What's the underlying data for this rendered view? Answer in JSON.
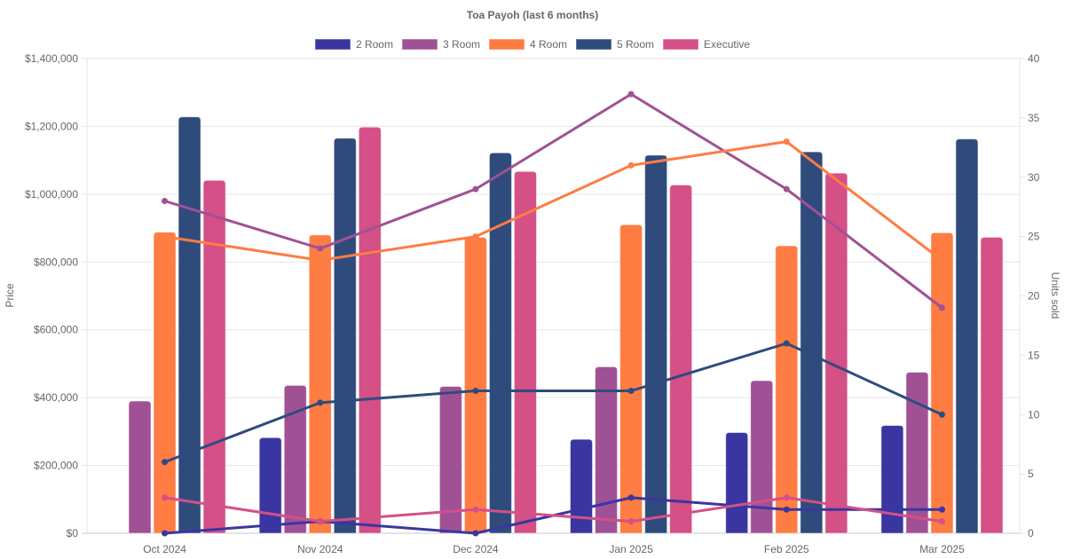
{
  "chart_data": {
    "type": "bar",
    "title": "Toa Payoh (last 6 months)",
    "categories": [
      "Oct 2024",
      "Nov 2024",
      "Dec 2024",
      "Jan 2025",
      "Feb 2025",
      "Mar 2025"
    ],
    "ylabel": "Price",
    "y2label": "Units sold",
    "ylim": [
      0,
      1400000
    ],
    "y2lim": [
      0,
      40
    ],
    "yticks": [
      "$0",
      "$200,000",
      "$400,000",
      "$600,000",
      "$800,000",
      "$1,000,000",
      "$1,200,000",
      "$1,400,000"
    ],
    "y2ticks": [
      "0",
      "5",
      "10",
      "15",
      "20",
      "25",
      "30",
      "35",
      "40"
    ],
    "legend_position": "top",
    "grid": true,
    "series": [
      {
        "name": "2 Room",
        "color": "#3a36a1",
        "price": [
          0,
          282000,
          0,
          277000,
          297000,
          318000
        ],
        "units_sold": [
          0,
          1,
          0,
          3,
          2,
          2
        ]
      },
      {
        "name": "3 Room",
        "color": "#a05195",
        "price": [
          390000,
          436000,
          433000,
          491000,
          450000,
          475000
        ],
        "units_sold": [
          28,
          24,
          29,
          37,
          29,
          19
        ]
      },
      {
        "name": "4 Room",
        "color": "#ff7c43",
        "price": [
          888000,
          880000,
          873000,
          910000,
          848000,
          886000
        ],
        "units_sold": [
          25,
          23,
          25,
          31,
          33,
          23
        ]
      },
      {
        "name": "5 Room",
        "color": "#2f4b7c",
        "price": [
          1228000,
          1165000,
          1122000,
          1115000,
          1125000,
          1163000
        ],
        "units_sold": [
          6,
          11,
          12,
          12,
          16,
          10
        ]
      },
      {
        "name": "Executive",
        "color": "#d45087",
        "price": [
          1041000,
          1198000,
          1067000,
          1027000,
          1062000,
          873000
        ],
        "units_sold": [
          3,
          1,
          2,
          1,
          3,
          1
        ]
      }
    ]
  }
}
